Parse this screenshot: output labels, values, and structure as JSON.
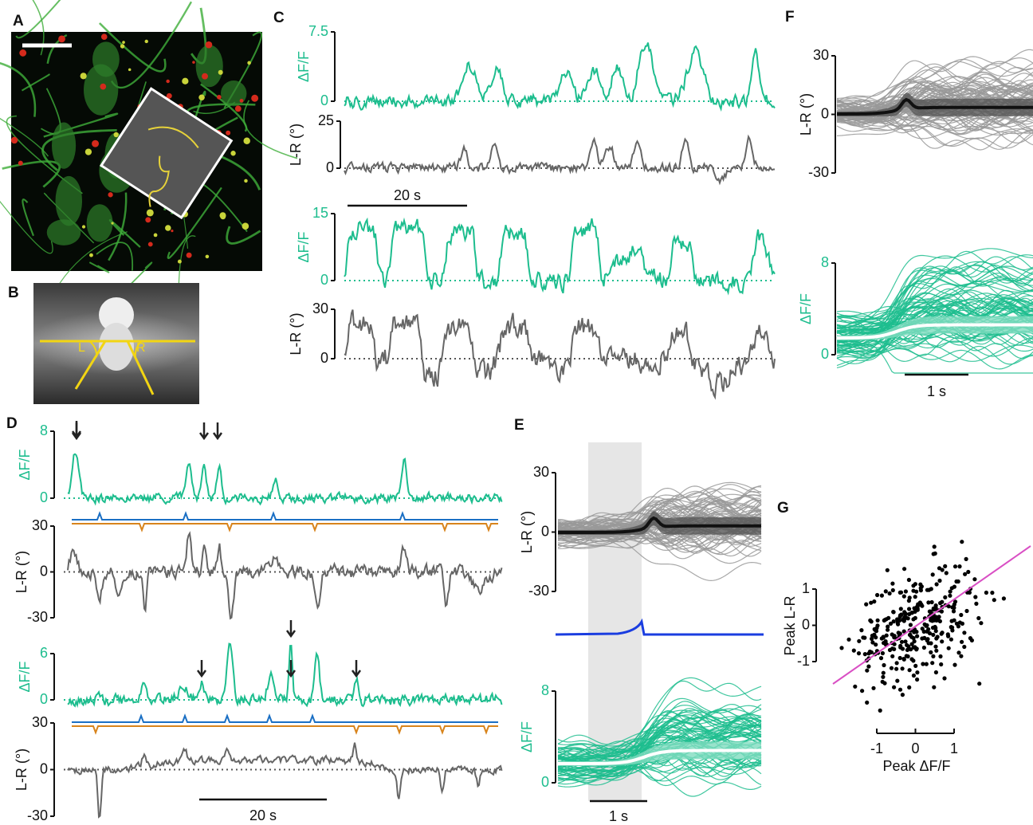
{
  "panels": {
    "A": {
      "label": "A"
    },
    "B": {
      "label": "B",
      "left": "L",
      "right": "R"
    },
    "C": {
      "label": "C",
      "axes": [
        {
          "ylabel": "ΔF/F",
          "ylim": [
            0,
            7.5
          ],
          "yticks": [
            0,
            7.5
          ]
        },
        {
          "ylabel": "L-R (°)",
          "ylim": [
            0,
            25
          ],
          "yticks": [
            0,
            25
          ]
        },
        {
          "ylabel": "ΔF/F",
          "ylim": [
            0,
            15
          ],
          "yticks": [
            0,
            15
          ]
        },
        {
          "ylabel": "L-R (°)",
          "ylim": [
            0,
            30
          ],
          "yticks": [
            0,
            30
          ]
        }
      ],
      "scalebar": "20 s"
    },
    "D": {
      "label": "D",
      "axes": [
        {
          "ylabel": "ΔF/F",
          "ylim": [
            0,
            8
          ],
          "yticks": [
            0,
            8
          ]
        },
        {
          "ylabel": "L-R (°)",
          "ylim": [
            -30,
            30
          ],
          "yticks": [
            -30,
            0,
            30
          ]
        },
        {
          "ylabel": "ΔF/F",
          "ylim": [
            0,
            6
          ],
          "yticks": [
            0,
            6
          ]
        },
        {
          "ylabel": "L-R (°)",
          "ylim": [
            -30,
            30
          ],
          "yticks": [
            -30,
            0,
            30
          ]
        }
      ],
      "scalebar": "20 s"
    },
    "E": {
      "label": "E",
      "axes": [
        {
          "ylabel": "L-R (°)",
          "ylim": [
            -30,
            30
          ],
          "yticks": [
            -30,
            0,
            30
          ]
        },
        {
          "ylabel": "ΔF/F",
          "ylim": [
            0,
            8
          ],
          "yticks": [
            0,
            8
          ]
        }
      ],
      "scalebar": "1 s"
    },
    "F": {
      "label": "F",
      "axes": [
        {
          "ylabel": "L-R (°)",
          "ylim": [
            -30,
            30
          ],
          "yticks": [
            -30,
            0,
            30
          ]
        },
        {
          "ylabel": "ΔF/F",
          "ylim": [
            0,
            8
          ],
          "yticks": [
            0,
            8
          ]
        }
      ],
      "scalebar": "1 s"
    },
    "G": {
      "label": "G",
      "ylabel": "Peak L-R",
      "xlabel": "Peak ΔF/F",
      "xlim": [
        -1,
        1
      ],
      "ylim": [
        -1,
        1
      ],
      "xticks": [
        -1,
        0,
        1
      ],
      "yticks": [
        -1,
        0,
        1
      ]
    }
  }
}
